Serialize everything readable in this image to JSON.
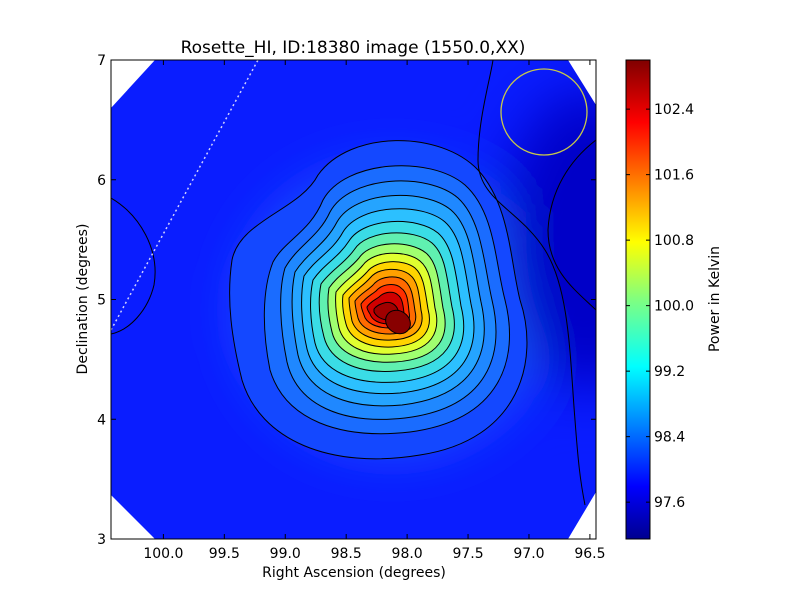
{
  "chart_data": {
    "type": "heatmap",
    "title": "Rosette_HI, ID:18380 image (1550.0,XX)",
    "xlabel": "Right Ascension (degrees)",
    "ylabel": "Declination (degrees)",
    "colorbar_label": "Power in Kelvin",
    "xlim": [
      100.43,
      96.45
    ],
    "ylim": [
      3,
      7
    ],
    "x_ticks": [
      100.0,
      99.5,
      99.0,
      98.5,
      98.0,
      97.5,
      97.0,
      96.5
    ],
    "x_tick_labels": [
      "100.0",
      "99.5",
      "99.0",
      "98.5",
      "98.0",
      "97.5",
      "97.0",
      "96.5"
    ],
    "y_ticks": [
      3,
      4,
      5,
      6,
      7
    ],
    "y_tick_labels": [
      "3",
      "4",
      "5",
      "6",
      "7"
    ],
    "colorbar_range": [
      97.15,
      103.0
    ],
    "colorbar_ticks": [
      97.6,
      98.4,
      99.2,
      100.0,
      100.8,
      101.6,
      102.4
    ],
    "colorbar_tick_labels": [
      "97.6",
      "98.4",
      "99.2",
      "100.0",
      "100.8",
      "101.6",
      "102.4"
    ],
    "colormap": "jet",
    "peak": {
      "ra": 98.1,
      "dec": 4.8,
      "value": 102.9
    },
    "background_level": 97.8,
    "low_region": {
      "ra": 96.6,
      "dec": 5.7,
      "value": 97.3
    },
    "beam_circle": {
      "ra": 96.85,
      "dec": 6.55,
      "radius_deg": 0.36,
      "color": "#c8c84a"
    },
    "grid": false,
    "legend": "none"
  }
}
